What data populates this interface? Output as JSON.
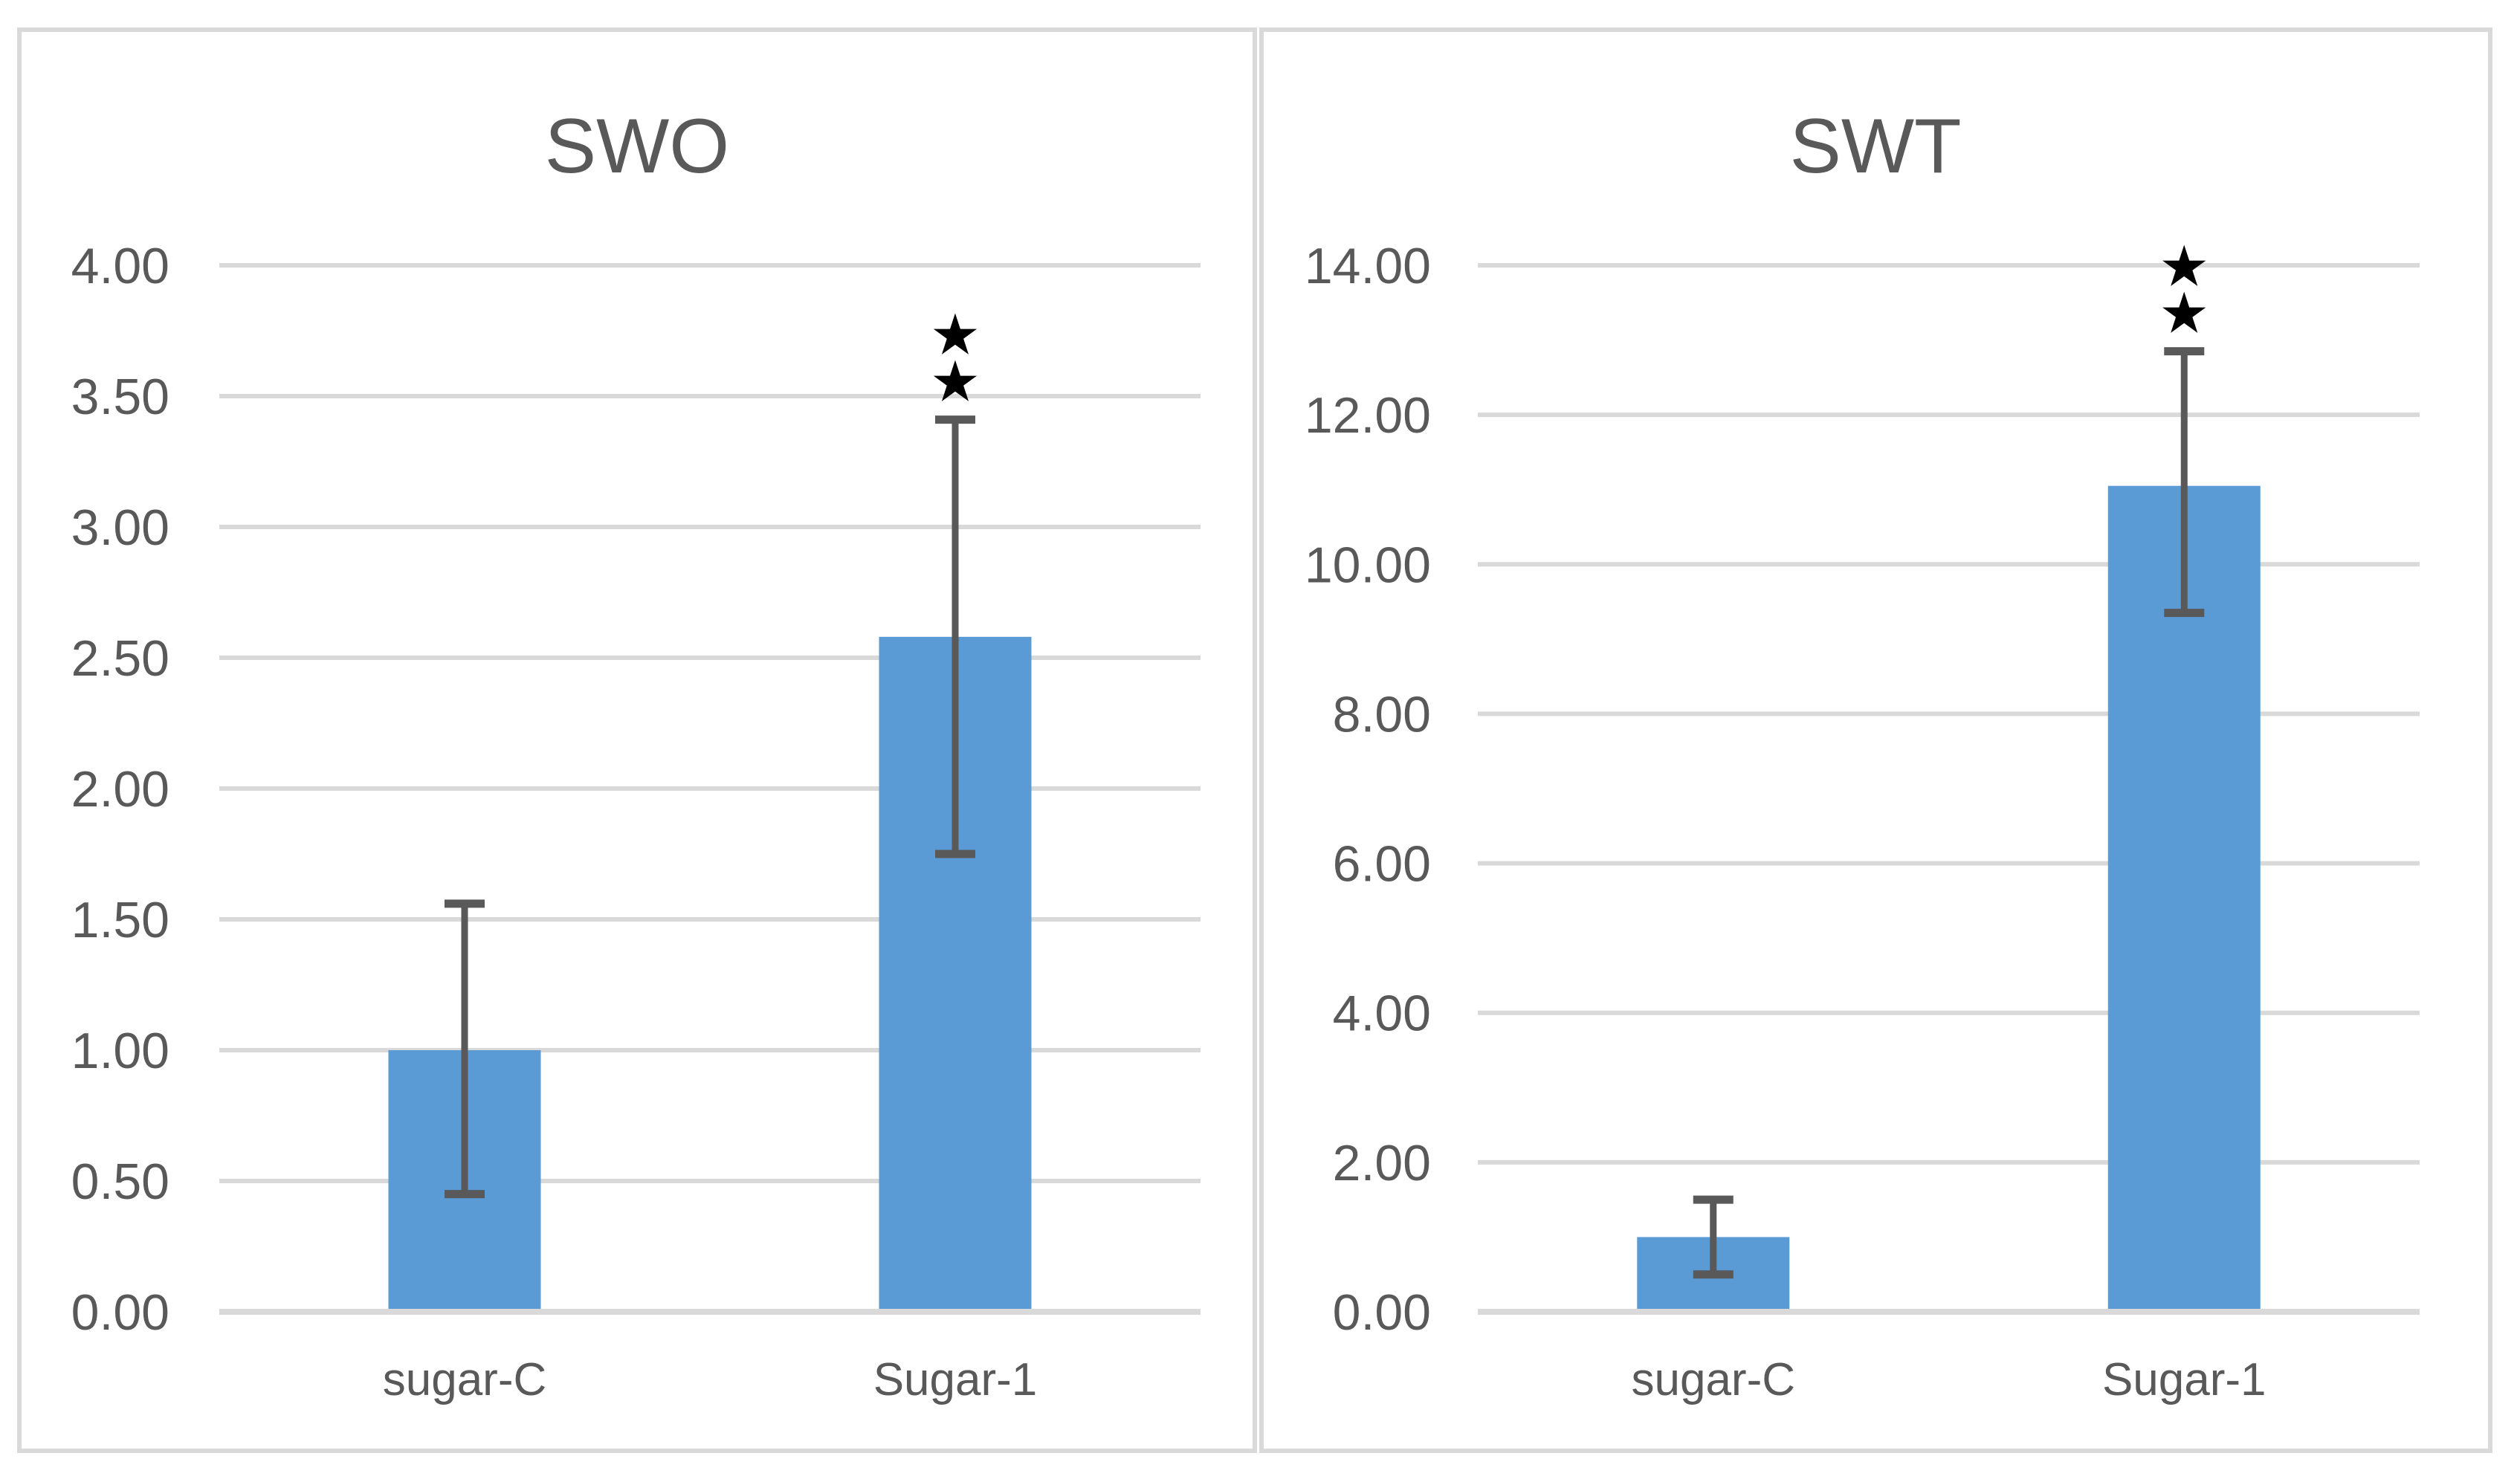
{
  "colors": {
    "background": "#FFFFFF",
    "bar": "#5B9BD5",
    "error_bar": "#595959",
    "gridline": "#D9D9D9",
    "axis_line": "#D9D9D9",
    "panel_border": "#D9D9D9",
    "text": "#595959",
    "significance_star": "#000000"
  },
  "symbols": {
    "star": "★"
  },
  "chart_data": [
    {
      "type": "bar",
      "title": "SWO",
      "categories": [
        "sugar-C",
        "Sugar-1"
      ],
      "values": [
        1.0,
        2.58
      ],
      "error_low": [
        0.45,
        1.75
      ],
      "error_high": [
        1.56,
        3.41
      ],
      "significance_stars": [
        0,
        2
      ],
      "ylim": [
        0,
        4
      ],
      "ytick_step": 0.5,
      "ytick_labels": [
        "0.00",
        "0.50",
        "1.00",
        "1.50",
        "2.00",
        "2.50",
        "3.00",
        "3.50",
        "4.00"
      ],
      "grid": true,
      "legend": "none",
      "xlabel": "",
      "ylabel": ""
    },
    {
      "type": "bar",
      "title": "SWT",
      "categories": [
        "sugar-C",
        "Sugar-1"
      ],
      "values": [
        1.0,
        11.05
      ],
      "error_low": [
        0.5,
        9.35
      ],
      "error_high": [
        1.5,
        12.85
      ],
      "significance_stars": [
        0,
        2
      ],
      "ylim": [
        0,
        14
      ],
      "ytick_step": 2,
      "ytick_labels": [
        "0.00",
        "2.00",
        "4.00",
        "6.00",
        "8.00",
        "10.00",
        "12.00",
        "14.00"
      ],
      "grid": true,
      "legend": "none",
      "xlabel": "",
      "ylabel": ""
    }
  ]
}
